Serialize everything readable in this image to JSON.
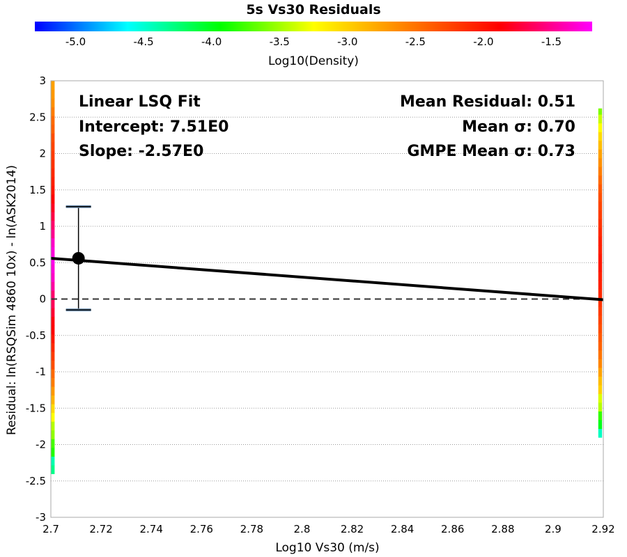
{
  "chart_data": {
    "type": "scatter",
    "title": "5s Vs30 Residuals",
    "xlabel": "Log10 Vs30 (m/s)",
    "ylabel": "Residual: ln(RSQSim 4860 10x) - ln(ASK2014)",
    "xlim": [
      2.7,
      2.92
    ],
    "ylim": [
      -3,
      3
    ],
    "x_ticks": [
      "2.7",
      "2.72",
      "2.74",
      "2.76",
      "2.78",
      "2.8",
      "2.82",
      "2.84",
      "2.86",
      "2.88",
      "2.9",
      "2.92"
    ],
    "y_ticks": [
      "-3",
      "-2.5",
      "-2",
      "-1.5",
      "-1",
      "-0.5",
      "0",
      "0.5",
      "1",
      "1.5",
      "2",
      "2.5",
      "3"
    ],
    "y_tick_values": [
      -3,
      -2.5,
      -2,
      -1.5,
      -1,
      -0.5,
      0,
      0.5,
      1,
      1.5,
      2,
      2.5,
      3
    ],
    "x_tick_values": [
      2.7,
      2.72,
      2.74,
      2.76,
      2.78,
      2.8,
      2.82,
      2.84,
      2.86,
      2.88,
      2.9,
      2.92
    ],
    "grid": "horizontal dotted",
    "colorbar": {
      "label": "Log10(Density)",
      "range": [
        -5.3,
        -1.2
      ],
      "ticks": [
        "-5.0",
        "-4.5",
        "-4.0",
        "-3.5",
        "-3.0",
        "-2.5",
        "-2.0",
        "-1.5"
      ],
      "tick_values": [
        -5.0,
        -4.5,
        -4.0,
        -3.5,
        -3.0,
        -2.5,
        -2.0,
        -1.5
      ],
      "colors": [
        "#0000ff",
        "#00ffff",
        "#00ff00",
        "#ffff00",
        "#ff7f00",
        "#ff0000",
        "#ff00ff"
      ]
    },
    "fit_line": {
      "x": [
        2.7,
        2.92
      ],
      "y": [
        0.56,
        -0.01
      ]
    },
    "zero_line": 0,
    "mean_point": {
      "x": 2.711,
      "y": 0.56,
      "err_low": -0.15,
      "err_high": 1.27
    },
    "density_columns": [
      {
        "x_start": 2.7,
        "x_end": 2.7015,
        "y_start": -2.4,
        "y_end": 3.0,
        "bin": 0.12,
        "densities": [
          -4.3,
          -4.4,
          -3.85,
          -3.75,
          -3.55,
          -3.45,
          -3.25,
          -3.05,
          -2.85,
          -2.7,
          -2.55,
          -2.45,
          -2.3,
          -2.2,
          -2.1,
          -2.0,
          -1.9,
          -1.85,
          -1.75,
          -1.65,
          -1.6,
          -1.45,
          -1.35,
          -1.3,
          -1.25,
          -1.3,
          -1.35,
          -1.5,
          -1.6,
          -1.7,
          -1.8,
          -1.9,
          -2.0,
          -2.05,
          -2.1,
          -2.15,
          -2.2,
          -2.25,
          -2.3,
          -2.4,
          -2.45,
          -2.55,
          -2.65,
          -2.7,
          -2.75,
          -2.85,
          -3.05
        ]
      },
      {
        "x_start": 2.918,
        "x_end": 2.9195,
        "y_start": -1.9,
        "y_end": 2.62,
        "bin": 0.12,
        "densities": [
          -4.45,
          -4.0,
          -3.8,
          -3.45,
          -3.35,
          -3.0,
          -2.9,
          -2.75,
          -2.6,
          -2.5,
          -2.4,
          -2.35,
          -2.3,
          -2.25,
          -2.2,
          -2.15,
          -2.1,
          -2.05,
          -2.05,
          -2.0,
          -2.0,
          -2.05,
          -2.05,
          -2.1,
          -2.15,
          -2.2,
          -2.25,
          -2.3,
          -2.35,
          -2.45,
          -2.55,
          -2.65,
          -2.75,
          -2.9,
          -3.05,
          -3.25,
          -3.4,
          -3.6,
          -3.8,
          -4.5,
          -5.1
        ]
      }
    ],
    "annotations": {
      "left": [
        "Linear LSQ Fit",
        "Intercept: 7.51E0",
        "Slope: -2.57E0"
      ],
      "right": [
        "Mean Residual: 0.51",
        "Mean σ: 0.70",
        "GMPE Mean σ: 0.73"
      ]
    }
  }
}
